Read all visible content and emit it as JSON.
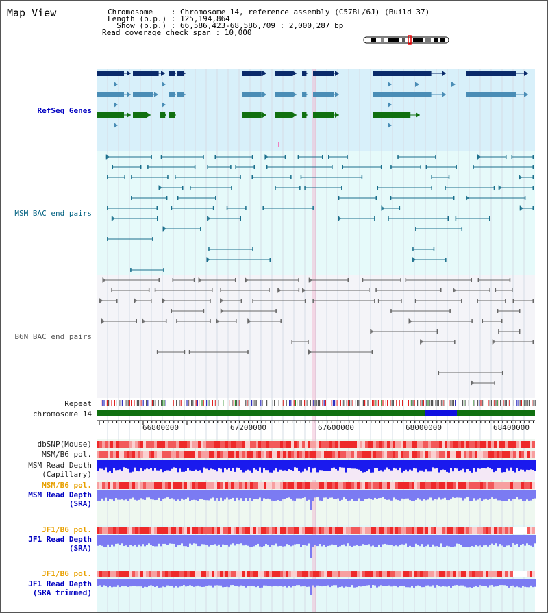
{
  "title": "Map View",
  "header": {
    "line1": "Chromosome    : Chromosome 14, reference assembly (C57BL/6J) (Build 37)",
    "line2": "Length (b.p.) : 125,194,864",
    "line3": "  Show (b.p.) : 66,586,423-68,586,709 : 2,000,287 bp",
    "line4": "Read coverage check span : 10,000"
  },
  "tracks": {
    "refseq": "RefSeq Genes",
    "msm_bac": "MSM BAC end pairs",
    "b6n_bac": "B6N BAC end pairs",
    "repeat": "Repeat",
    "chromosome": "chromosome 14",
    "dbsnp": "dbSNP(Mouse)",
    "msm_b6_pol_1": "MSM/B6 pol.",
    "msm_depth_cap_1": "MSM Read Depth",
    "msm_depth_cap_2": "(Capillary)",
    "msm_b6_pol_2": "MSM/B6 pol.",
    "msm_depth_sra_1": "MSM Read Depth",
    "msm_depth_sra_2": "(SRA)",
    "jf1_pol_1": "JF1/B6 pol.",
    "jf1_depth_sra_1": "JF1 Read Depth",
    "jf1_depth_sra_2": "(SRA)",
    "jf1_pol_2": "JF1/B6 pol.",
    "jf1_depth_trim_1": "JF1 Read Depth",
    "jf1_depth_trim_2": "(SRA trimmed)"
  },
  "axis": {
    "ticks": [
      "66800000",
      "67200000",
      "67600000",
      "68000000",
      "68400000"
    ]
  },
  "colors": {
    "refseq_bg": "#d8f0fa",
    "msm_bg": "#e6fafa",
    "b6n_bg": "#f4f4f8",
    "gene_navy": "#0a2a6a",
    "gene_steel": "#4a8db6",
    "gene_green": "#107010",
    "msm_line": "#1a6f8c",
    "b6n_line": "#666666",
    "chromosome": "#107010",
    "chromosome_band": "#1010e0",
    "depth_blue": "#1a1aee",
    "depth_light": "#7b7bf2",
    "pol_red": "#ee3030"
  }
}
